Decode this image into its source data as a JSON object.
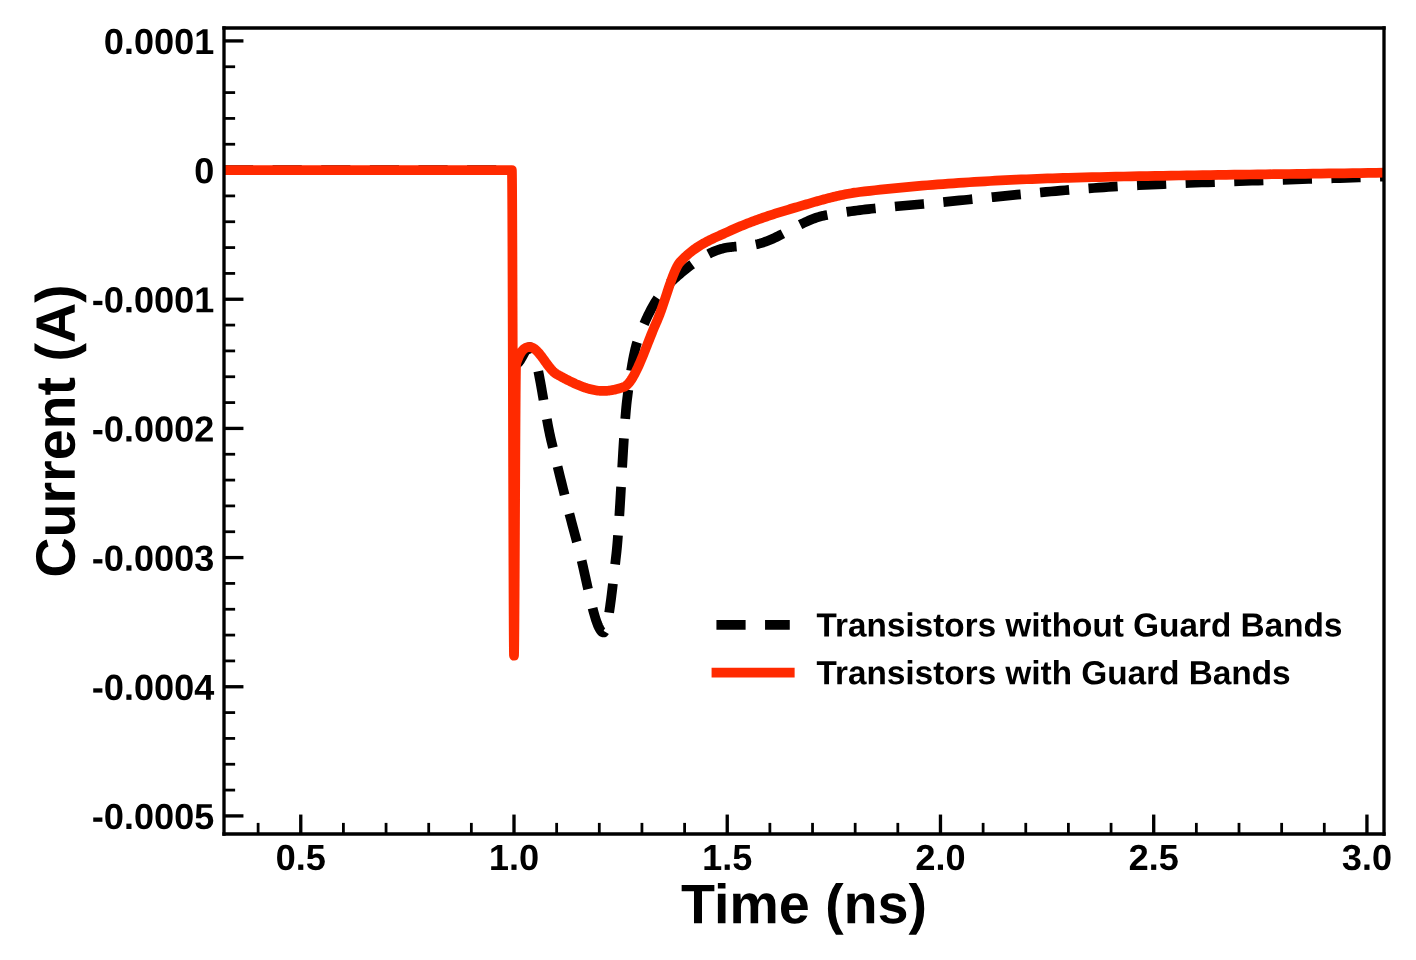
{
  "chart_data": {
    "type": "line",
    "xlabel": "Time (ns)",
    "ylabel": "Current (A)",
    "xlim": [
      0.32,
      3.04
    ],
    "ylim": [
      -0.000514,
      0.00011
    ],
    "xticks": [
      0.5,
      {
        "value": 1,
        "label": "1.0"
      },
      1.5,
      {
        "value": 2,
        "label": "2.0"
      },
      2.5,
      {
        "value": 3,
        "label": "3.0"
      }
    ],
    "yticks": [
      0.0001,
      0,
      -0.0001,
      -0.0002,
      -0.0003,
      -0.0004,
      -0.0005
    ],
    "grid": false,
    "legend": "bottom right",
    "marker": "none",
    "series": [
      {
        "name": "Transistors without Guard Bands",
        "color": "#000000",
        "line_style": "dashed",
        "x": [
          0.32,
          0.995,
          1.0,
          1.005,
          1.037,
          1.087,
          1.15,
          1.21,
          1.24,
          1.265,
          1.29,
          1.38,
          1.5,
          1.56,
          1.73,
          2.0,
          2.45,
          3.04
        ],
        "values": [
          0,
          0,
          null,
          -0.00015,
          -0.000137,
          -0.000209,
          -0.000291,
          -0.000358,
          -0.000297,
          -0.000178,
          -0.000132,
          -8.3e-05,
          -6e-05,
          -5.8e-05,
          -3.5e-05,
          -2.5e-05,
          -1.2e-05,
          -5e-06
        ]
      },
      {
        "name": "Transistors with Guard Bands",
        "color": "#ff2a00",
        "line_style": "solid",
        "x": [
          0.32,
          0.995,
          1.0,
          1.005,
          1.037,
          1.1,
          1.21,
          1.257,
          1.335,
          1.39,
          1.5,
          1.66,
          1.81,
          2.3,
          3.04
        ],
        "values": [
          0,
          0,
          -0.000376,
          -0.00015,
          -0.000137,
          -0.000158,
          -0.000171,
          -0.000168,
          -0.000117,
          -7.1e-05,
          -4.8e-05,
          -2.9e-05,
          -1.7e-05,
          -6e-06,
          -2e-06
        ]
      }
    ]
  }
}
